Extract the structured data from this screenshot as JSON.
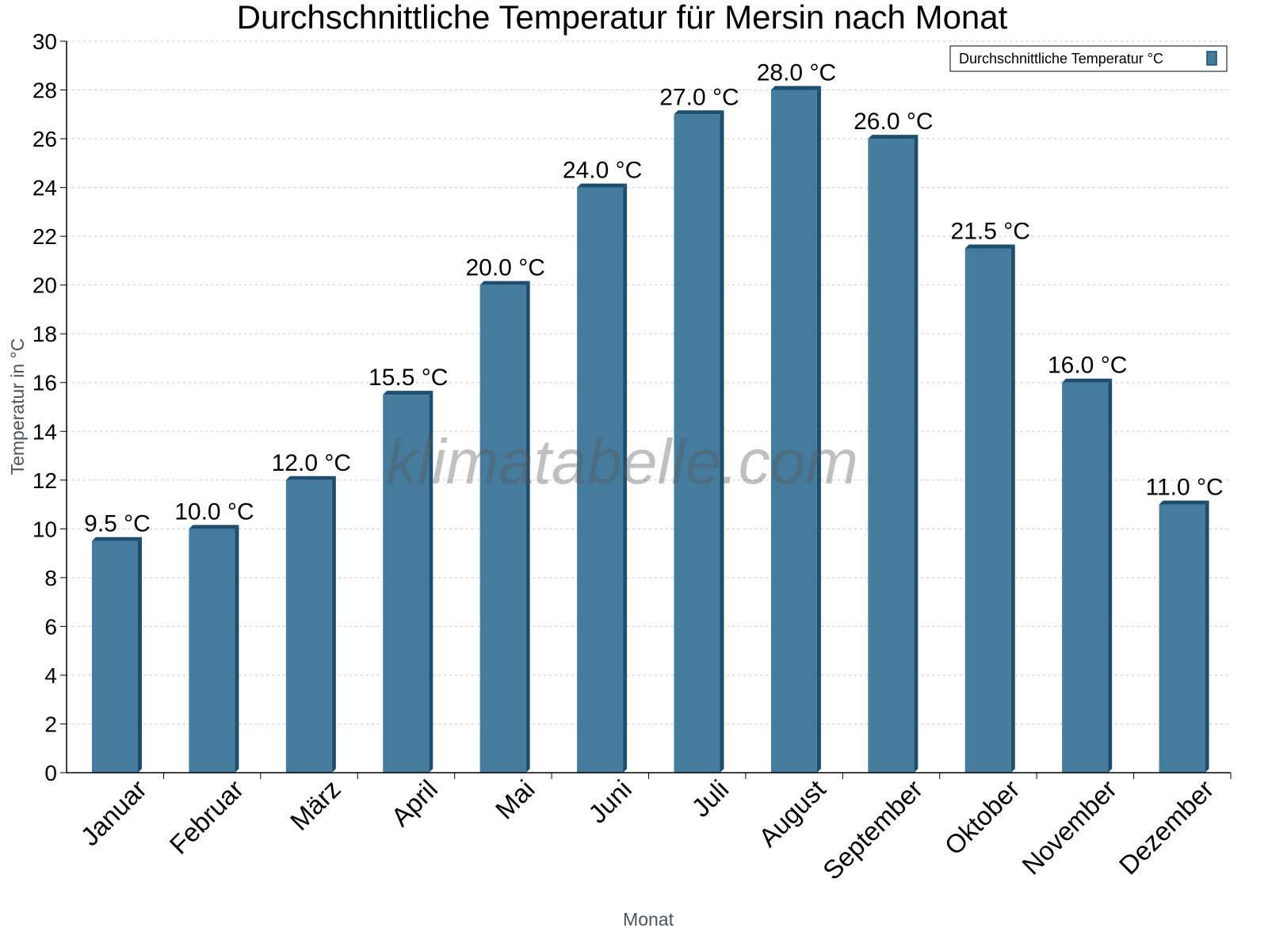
{
  "chart_data": {
    "type": "bar",
    "title": "Durchschnittliche Temperatur für Mersin nach Monat",
    "xlabel": "Monat",
    "ylabel": "Temperatur in °C",
    "ylim": [
      0,
      30
    ],
    "yticks": [
      0,
      2,
      4,
      6,
      8,
      10,
      12,
      14,
      16,
      18,
      20,
      22,
      24,
      26,
      28,
      30
    ],
    "grid": true,
    "legend_position": "top-right",
    "categories": [
      "Januar",
      "Februar",
      "März",
      "April",
      "Mai",
      "Juni",
      "Juli",
      "August",
      "September",
      "Oktober",
      "November",
      "Dezember"
    ],
    "series": [
      {
        "name": "Durchschnittliche Temperatur °C",
        "values": [
          9.5,
          10.0,
          12.0,
          15.5,
          20.0,
          24.0,
          27.0,
          28.0,
          26.0,
          21.5,
          16.0,
          11.0
        ]
      }
    ],
    "data_labels": [
      "9.5 °C",
      "10.0 °C",
      "12.0 °C",
      "15.5 °C",
      "20.0 °C",
      "24.0 °C",
      "27.0 °C",
      "28.0 °C",
      "26.0 °C",
      "21.5 °C",
      "16.0 °C",
      "11.0 °C"
    ],
    "colors": {
      "bar_front": "#457b9d",
      "bar_side": "#1d4e6e",
      "grid": "#c8c8c8"
    }
  },
  "watermark": "klimatabelle.com"
}
